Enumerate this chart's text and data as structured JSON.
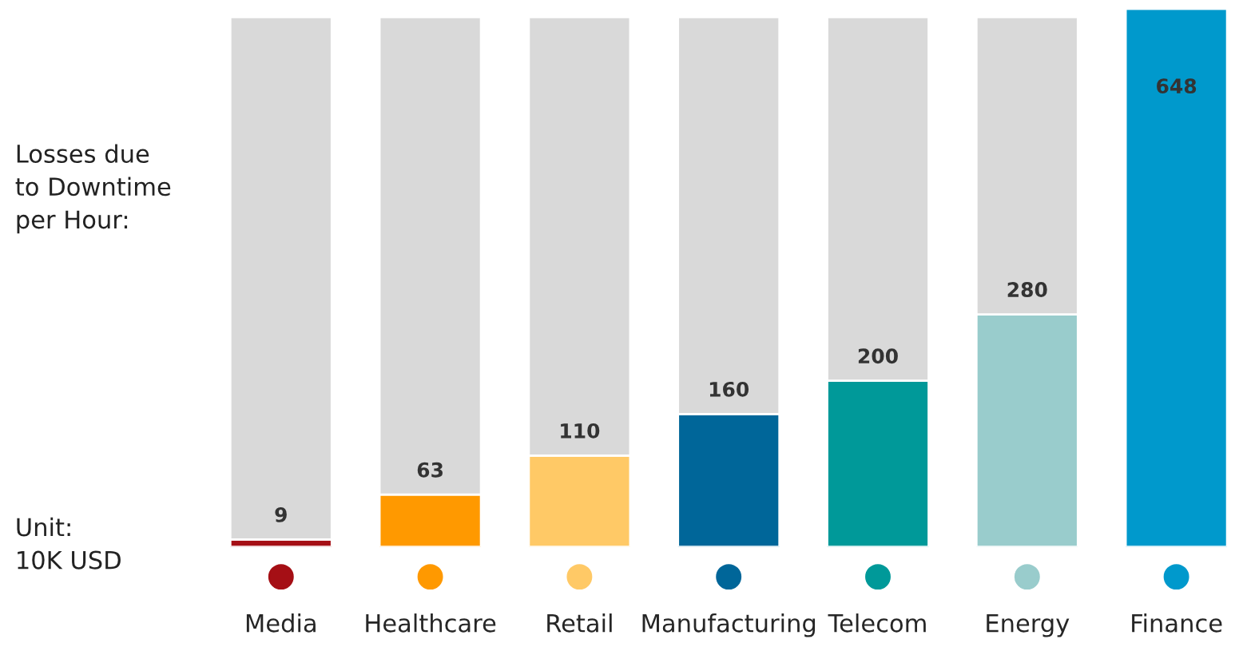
{
  "chart_data": {
    "type": "bar",
    "categories": [
      "Media",
      "Healthcare",
      "Retail",
      "Manufacturing",
      "Telecom",
      "Energy",
      "Finance"
    ],
    "series": [
      {
        "colors": [
          "#a50f15",
          "#ff9900",
          "#ffc966",
          "#006699",
          "#009999",
          "#99cccc",
          "#0099cc"
        ],
        "values": [
          9,
          63,
          110,
          160,
          200,
          280,
          648
        ],
        "value_labels": [
          "9",
          "63",
          "110",
          "160",
          "200",
          "280",
          "648"
        ]
      },
      {
        "color": "#d9d9d9",
        "values": [
          629,
          575,
          528,
          478,
          438,
          358,
          null
        ]
      }
    ],
    "stacked": true,
    "relative": false,
    "annotations": [
      "Losses due\nto Downtime\nper Hour:",
      "Unit:\n10K USD"
    ],
    "grid": false,
    "legend": false
  }
}
